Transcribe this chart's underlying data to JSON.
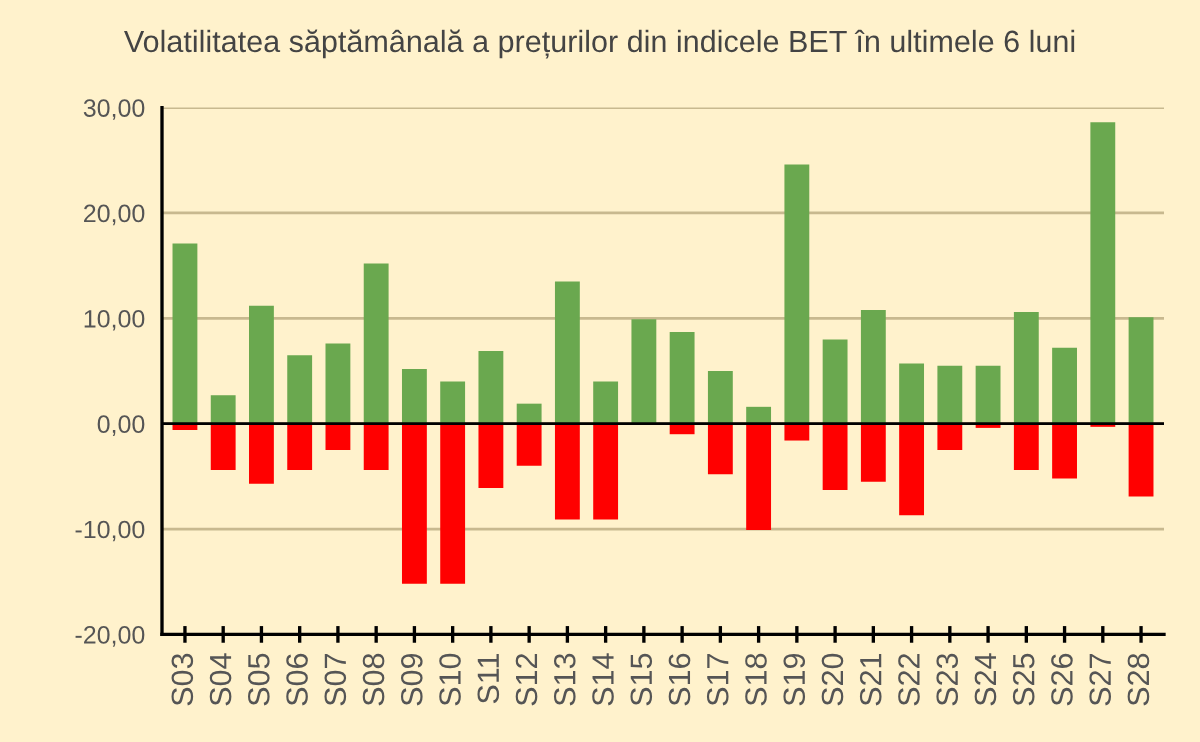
{
  "chart_data": {
    "type": "bar",
    "title": "Volatilitatea săptămânală a prețurilor din indicele BET în ultimele 6 luni",
    "categories": [
      "S03",
      "S04",
      "S05",
      "S06",
      "S07",
      "S08",
      "S09",
      "S10",
      "S11",
      "S12",
      "S13",
      "S14",
      "S15",
      "S16",
      "S17",
      "S18",
      "S19",
      "S20",
      "S21",
      "S22",
      "S23",
      "S24",
      "S25",
      "S26",
      "S27",
      "S28"
    ],
    "stacked": true,
    "series": [
      {
        "color": "#6aa84f",
        "values": [
          17.1,
          2.7,
          11.2,
          6.5,
          7.6,
          15.2,
          5.2,
          4.0,
          6.9,
          1.9,
          13.5,
          4.0,
          9.9,
          8.7,
          5.0,
          1.6,
          24.6,
          8.0,
          10.8,
          5.7,
          5.5,
          5.5,
          10.6,
          7.2,
          28.6,
          10.1
        ]
      },
      {
        "color": "#ff0000",
        "values": [
          -0.6,
          -4.4,
          -5.7,
          -4.4,
          -2.5,
          -4.4,
          -15.2,
          -15.2,
          -6.1,
          -4.0,
          -9.1,
          -9.1,
          null,
          -1.0,
          -4.8,
          -10.1,
          -1.6,
          -6.3,
          -5.5,
          -8.7,
          -2.5,
          -0.4,
          -4.4,
          -5.2,
          -0.3,
          -6.9
        ]
      }
    ],
    "ylim": [
      -20,
      30
    ],
    "yticks": [
      {
        "value": -20,
        "label": "-20,00"
      },
      {
        "value": -10,
        "label": "-10,00"
      },
      {
        "value": 0,
        "label": "0,00"
      },
      {
        "value": 10,
        "label": "10,00"
      },
      {
        "value": 20,
        "label": "20,00"
      },
      {
        "value": 30,
        "label": "30,00"
      }
    ],
    "grid": "y"
  }
}
